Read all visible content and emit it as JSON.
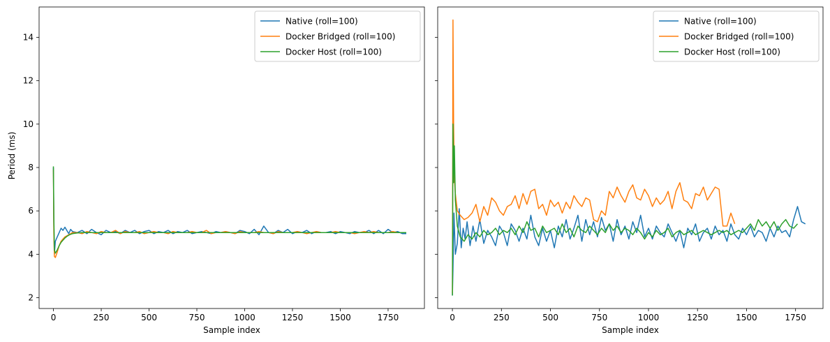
{
  "figure": {
    "ylabel": "Period (ms)"
  },
  "chart_data": [
    {
      "type": "line",
      "xlabel": "Sample index",
      "ylabel": "Period (ms)",
      "xlim": [
        -75,
        1940
      ],
      "ylim": [
        1.5,
        15.4
      ],
      "xticks": [
        0,
        250,
        500,
        750,
        1000,
        1250,
        1500,
        1750
      ],
      "yticks": [
        2,
        4,
        6,
        8,
        10,
        12,
        14
      ],
      "legend_position": "top-right",
      "grid": false,
      "series": [
        {
          "name": "Native (roll=100)",
          "color": "#1f77b4",
          "x": [
            0,
            2,
            5,
            10,
            20,
            30,
            40,
            50,
            60,
            70,
            80,
            90,
            100,
            125,
            150,
            175,
            200,
            225,
            250,
            275,
            300,
            325,
            350,
            375,
            400,
            425,
            450,
            475,
            500,
            525,
            550,
            575,
            600,
            625,
            650,
            675,
            700,
            725,
            750,
            775,
            800,
            825,
            850,
            875,
            900,
            925,
            950,
            975,
            1000,
            1025,
            1050,
            1075,
            1100,
            1125,
            1150,
            1175,
            1200,
            1225,
            1250,
            1275,
            1300,
            1325,
            1350,
            1375,
            1400,
            1425,
            1450,
            1475,
            1500,
            1525,
            1550,
            1575,
            1600,
            1625,
            1650,
            1675,
            1700,
            1725,
            1750,
            1775,
            1800,
            1825,
            1845
          ],
          "y": [
            8.0,
            5.5,
            4.0,
            4.6,
            4.8,
            5.0,
            5.2,
            5.1,
            5.25,
            5.1,
            4.95,
            5.15,
            5.05,
            5.0,
            5.1,
            4.95,
            5.15,
            5.0,
            4.9,
            5.1,
            5.0,
            5.05,
            4.95,
            5.1,
            5.0,
            5.1,
            4.95,
            5.05,
            5.1,
            4.95,
            5.05,
            5.0,
            5.1,
            4.95,
            5.05,
            5.0,
            5.1,
            4.95,
            5.0,
            5.05,
            5.0,
            4.95,
            5.05,
            5.0,
            5.05,
            5.0,
            4.95,
            5.1,
            5.05,
            4.95,
            5.15,
            4.9,
            5.3,
            5.0,
            4.95,
            5.1,
            5.0,
            5.15,
            4.95,
            5.05,
            5.0,
            5.1,
            4.95,
            5.05,
            5.0,
            5.0,
            5.05,
            4.95,
            5.05,
            5.0,
            4.95,
            5.05,
            5.0,
            5.0,
            5.1,
            4.95,
            5.1,
            4.95,
            5.15,
            5.0,
            5.05,
            4.95,
            4.95
          ]
        },
        {
          "name": "Docker Bridged (roll=100)",
          "color": "#ff7f0e",
          "x": [
            0,
            2,
            5,
            10,
            20,
            30,
            40,
            50,
            60,
            70,
            80,
            90,
            100,
            125,
            150,
            175,
            200,
            225,
            250,
            275,
            300,
            325,
            350,
            375,
            400,
            425,
            450,
            475,
            500,
            525,
            550,
            575,
            600,
            625,
            650,
            675,
            700,
            725,
            750,
            775,
            800,
            825,
            850,
            875,
            900,
            925,
            950,
            975,
            1000,
            1025,
            1050,
            1075,
            1100,
            1125,
            1150,
            1175,
            1200,
            1225,
            1250,
            1275,
            1300,
            1325,
            1350,
            1375,
            1400,
            1425,
            1450,
            1475,
            1500,
            1525,
            1550,
            1575,
            1600,
            1625,
            1650,
            1675,
            1700,
            1725,
            1750,
            1775,
            1800,
            1825,
            1845
          ],
          "y": [
            7.9,
            5.0,
            3.9,
            3.85,
            4.1,
            4.4,
            4.6,
            4.7,
            4.8,
            4.85,
            4.9,
            4.95,
            5.0,
            5.0,
            4.95,
            5.05,
            5.0,
            4.95,
            5.05,
            5.0,
            5.0,
            5.1,
            4.95,
            5.05,
            5.0,
            5.0,
            5.05,
            4.95,
            5.0,
            5.05,
            5.0,
            5.0,
            4.95,
            5.05,
            5.0,
            5.0,
            5.0,
            5.05,
            5.0,
            5.0,
            5.1,
            4.95,
            5.0,
            5.0,
            5.05,
            5.0,
            4.95,
            5.05,
            5.0,
            5.0,
            5.0,
            5.05,
            5.0,
            5.0,
            4.95,
            5.05,
            5.0,
            5.0,
            5.0,
            5.05,
            5.0,
            4.95,
            5.0,
            5.05,
            5.0,
            5.0,
            5.0,
            5.05,
            5.0,
            5.0,
            5.0,
            4.95,
            5.0,
            5.05,
            5.0,
            5.05,
            5.0,
            5.0,
            5.0,
            5.05,
            5.0,
            5.0,
            5.0
          ]
        },
        {
          "name": "Docker Host (roll=100)",
          "color": "#2ca02c",
          "x": [
            0,
            2,
            5,
            10,
            20,
            30,
            40,
            50,
            60,
            70,
            80,
            90,
            100,
            125,
            150,
            175,
            200,
            250,
            300,
            350,
            400,
            450,
            500,
            550,
            600,
            650,
            700,
            750,
            800,
            850,
            900,
            950,
            1000,
            1050,
            1100,
            1150,
            1200,
            1250,
            1300,
            1350,
            1400,
            1450,
            1500,
            1550,
            1600,
            1650,
            1700,
            1750,
            1800,
            1845
          ],
          "y": [
            8.05,
            5.8,
            4.2,
            4.05,
            4.2,
            4.4,
            4.55,
            4.65,
            4.75,
            4.82,
            4.88,
            4.92,
            4.95,
            4.98,
            5.0,
            5.0,
            5.0,
            5.0,
            5.0,
            5.0,
            5.0,
            5.0,
            5.0,
            5.0,
            5.0,
            5.0,
            5.0,
            5.0,
            5.0,
            5.0,
            5.0,
            5.0,
            5.0,
            5.0,
            5.0,
            5.0,
            5.0,
            5.0,
            5.0,
            5.0,
            5.0,
            5.0,
            5.0,
            5.0,
            5.0,
            5.0,
            5.0,
            5.0,
            5.0,
            5.0
          ]
        }
      ]
    },
    {
      "type": "line",
      "xlabel": "Sample index",
      "ylabel": "",
      "xlim": [
        -75,
        1890
      ],
      "ylim": [
        1.5,
        15.4
      ],
      "xticks": [
        0,
        250,
        500,
        750,
        1000,
        1250,
        1500,
        1750
      ],
      "yticks": [
        2,
        4,
        6,
        8,
        10,
        12,
        14
      ],
      "legend_position": "top-right",
      "grid": false,
      "series": [
        {
          "name": "Native (roll=100)",
          "color": "#1f77b4",
          "x": [
            0,
            3,
            8,
            15,
            25,
            35,
            45,
            55,
            65,
            75,
            90,
            105,
            120,
            140,
            160,
            180,
            200,
            220,
            240,
            260,
            280,
            300,
            320,
            340,
            360,
            380,
            400,
            420,
            440,
            460,
            480,
            500,
            520,
            540,
            560,
            580,
            600,
            620,
            640,
            660,
            680,
            700,
            720,
            740,
            760,
            780,
            800,
            820,
            840,
            860,
            880,
            900,
            920,
            940,
            960,
            980,
            1000,
            1020,
            1040,
            1060,
            1080,
            1100,
            1120,
            1140,
            1160,
            1180,
            1200,
            1220,
            1240,
            1260,
            1280,
            1300,
            1320,
            1340,
            1360,
            1380,
            1400,
            1420,
            1440,
            1460,
            1480,
            1500,
            1520,
            1540,
            1560,
            1580,
            1600,
            1620,
            1640,
            1660,
            1680,
            1700,
            1720,
            1740,
            1760,
            1780,
            1800
          ],
          "y": [
            2.1,
            3.3,
            5.9,
            4.0,
            4.5,
            6.1,
            4.3,
            5.2,
            4.7,
            5.5,
            4.4,
            5.3,
            4.6,
            5.6,
            4.5,
            5.1,
            4.8,
            4.4,
            5.3,
            5.0,
            4.4,
            5.4,
            5.1,
            4.6,
            5.2,
            4.7,
            5.8,
            4.8,
            4.4,
            5.2,
            4.6,
            5.1,
            4.3,
            5.3,
            4.8,
            5.6,
            4.7,
            5.2,
            5.8,
            4.6,
            5.6,
            4.9,
            5.5,
            4.8,
            5.7,
            5.1,
            5.4,
            4.6,
            5.6,
            4.9,
            5.3,
            4.7,
            5.5,
            5.0,
            5.8,
            4.8,
            5.2,
            4.7,
            5.3,
            5.0,
            4.8,
            5.4,
            5.0,
            4.6,
            5.1,
            4.3,
            5.2,
            4.9,
            5.4,
            4.6,
            5.0,
            5.2,
            4.7,
            5.3,
            4.9,
            5.1,
            4.6,
            5.4,
            4.9,
            4.7,
            5.2,
            4.9,
            5.3,
            4.8,
            5.1,
            5.0,
            4.6,
            5.2,
            4.8,
            5.3,
            5.0,
            5.1,
            4.8,
            5.6,
            6.2,
            5.5,
            5.4
          ]
        },
        {
          "name": "Docker Bridged (roll=100)",
          "color": "#ff7f0e",
          "x": [
            0,
            3,
            6,
            10,
            15,
            25,
            40,
            60,
            80,
            100,
            120,
            140,
            160,
            180,
            200,
            220,
            240,
            260,
            280,
            300,
            320,
            340,
            360,
            380,
            400,
            420,
            440,
            460,
            480,
            500,
            520,
            540,
            560,
            580,
            600,
            620,
            640,
            660,
            680,
            700,
            720,
            740,
            760,
            780,
            800,
            820,
            840,
            860,
            880,
            900,
            920,
            940,
            960,
            980,
            1000,
            1020,
            1040,
            1060,
            1080,
            1100,
            1120,
            1140,
            1160,
            1180,
            1200,
            1220,
            1240,
            1260,
            1280,
            1300,
            1320,
            1340,
            1360,
            1380,
            1400,
            1420,
            1440
          ],
          "y": [
            2.2,
            14.8,
            10.0,
            7.5,
            6.8,
            6.0,
            5.8,
            5.6,
            5.7,
            5.9,
            6.3,
            5.5,
            6.2,
            5.8,
            6.6,
            6.4,
            6.0,
            5.8,
            6.2,
            6.3,
            6.7,
            6.1,
            6.8,
            6.3,
            6.9,
            7.0,
            6.1,
            6.3,
            5.8,
            6.5,
            6.2,
            6.4,
            5.9,
            6.4,
            6.1,
            6.7,
            6.4,
            6.2,
            6.6,
            6.5,
            5.6,
            5.5,
            6.0,
            5.8,
            6.9,
            6.6,
            7.1,
            6.7,
            6.4,
            6.9,
            7.2,
            6.6,
            6.5,
            7.0,
            6.7,
            6.2,
            6.6,
            6.3,
            6.5,
            6.9,
            6.1,
            6.9,
            7.3,
            6.5,
            6.4,
            6.1,
            6.8,
            6.7,
            7.1,
            6.5,
            6.8,
            7.1,
            7.0,
            5.3,
            5.3,
            5.9,
            5.4
          ]
        },
        {
          "name": "Docker Host (roll=100)",
          "color": "#2ca02c",
          "x": [
            0,
            3,
            6,
            10,
            15,
            25,
            40,
            60,
            80,
            100,
            120,
            140,
            160,
            180,
            200,
            220,
            240,
            260,
            280,
            300,
            320,
            340,
            360,
            380,
            400,
            420,
            440,
            460,
            480,
            500,
            520,
            540,
            560,
            580,
            600,
            620,
            640,
            660,
            680,
            700,
            720,
            740,
            760,
            780,
            800,
            820,
            840,
            860,
            880,
            900,
            920,
            940,
            960,
            980,
            1000,
            1020,
            1040,
            1060,
            1080,
            1100,
            1120,
            1140,
            1160,
            1180,
            1200,
            1220,
            1240,
            1260,
            1280,
            1300,
            1320,
            1340,
            1360,
            1380,
            1400,
            1420,
            1440,
            1460,
            1480,
            1500,
            1520,
            1540,
            1560,
            1580,
            1600,
            1620,
            1640,
            1660,
            1680,
            1700,
            1720,
            1740,
            1760
          ],
          "y": [
            2.1,
            10.0,
            7.3,
            9.0,
            6.5,
            5.3,
            4.8,
            4.6,
            4.9,
            4.7,
            5.0,
            4.8,
            5.1,
            4.9,
            5.0,
            5.2,
            4.9,
            5.1,
            5.0,
            5.2,
            4.9,
            5.3,
            5.0,
            5.5,
            5.1,
            5.2,
            4.8,
            5.3,
            5.0,
            5.1,
            5.2,
            4.9,
            5.4,
            5.0,
            5.2,
            4.8,
            5.3,
            5.1,
            5.0,
            5.3,
            5.1,
            4.9,
            5.2,
            5.0,
            5.4,
            5.1,
            5.3,
            5.0,
            5.2,
            5.1,
            4.9,
            5.2,
            5.0,
            4.7,
            5.0,
            4.8,
            5.1,
            4.9,
            5.0,
            5.2,
            4.8,
            5.0,
            5.1,
            4.9,
            5.0,
            5.1,
            4.9,
            5.0,
            5.1,
            5.0,
            4.9,
            5.0,
            5.1,
            5.0,
            5.1,
            4.9,
            5.0,
            5.1,
            5.0,
            5.2,
            5.4,
            5.1,
            5.6,
            5.3,
            5.5,
            5.2,
            5.5,
            5.1,
            5.4,
            5.6,
            5.3,
            5.2,
            5.4
          ]
        }
      ]
    }
  ]
}
